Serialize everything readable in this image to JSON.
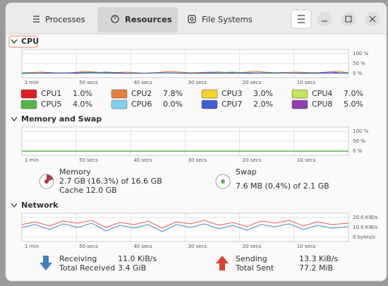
{
  "tabs": [
    "Processes",
    "Resources",
    "File Systems"
  ],
  "cpu": {
    "title": "CPU",
    "y_labels": [
      "100 %",
      "50 %",
      "0 %"
    ],
    "x_labels": [
      "1 min",
      "50 secs",
      "40 secs",
      "30 secs",
      "20 secs",
      "10 secs"
    ],
    "cores": [
      {
        "name": "CPU1",
        "value": "1.0%",
        "color": "#e01b24"
      },
      {
        "name": "CPU2",
        "value": "7.8%",
        "color": "#e6803a"
      },
      {
        "name": "CPU3",
        "value": "3.0%",
        "color": "#f6d32d"
      },
      {
        "name": "CPU4",
        "value": "7.0%",
        "color": "#c3e65a"
      },
      {
        "name": "CPU5",
        "value": "4.0%",
        "color": "#57b548"
      },
      {
        "name": "CPU6",
        "value": "0.0%",
        "color": "#7ed1f2"
      },
      {
        "name": "CPU7",
        "value": "2.0%",
        "color": "#3f5fcf"
      },
      {
        "name": "CPU8",
        "value": "5.0%",
        "color": "#8f3fb0"
      }
    ]
  },
  "memory": {
    "title": "Memory and Swap",
    "y_labels": [
      "100 %",
      "50 %",
      "0 %"
    ],
    "x_labels": [
      "1 min",
      "50 secs",
      "40 secs",
      "30 secs",
      "20 secs",
      "10 secs"
    ],
    "memory_label": "Memory",
    "memory_usage": "2.7 GB (16.3%) of 16.6 GB",
    "cache": "Cache 12.0 GB",
    "swap_label": "Swap",
    "swap_usage": "7.6 MB (0.4%) of 2.1 GB"
  },
  "network": {
    "title": "Network",
    "y_labels": [
      "20.0 KiB/s",
      "10.0 KiB/s",
      "0 bytes/s"
    ],
    "x_labels": [
      "1 min",
      "50 secs",
      "40 secs",
      "30 secs",
      "20 secs",
      "10 secs"
    ],
    "receiving_label": "Receiving",
    "receiving_rate": "11.0 KiB/s",
    "total_received_label": "Total Received",
    "total_received": "3.4 GiB",
    "sending_label": "Sending",
    "sending_rate": "13.3 KiB/s",
    "total_sent_label": "Total Sent",
    "total_sent": "77.2 MiB"
  }
}
